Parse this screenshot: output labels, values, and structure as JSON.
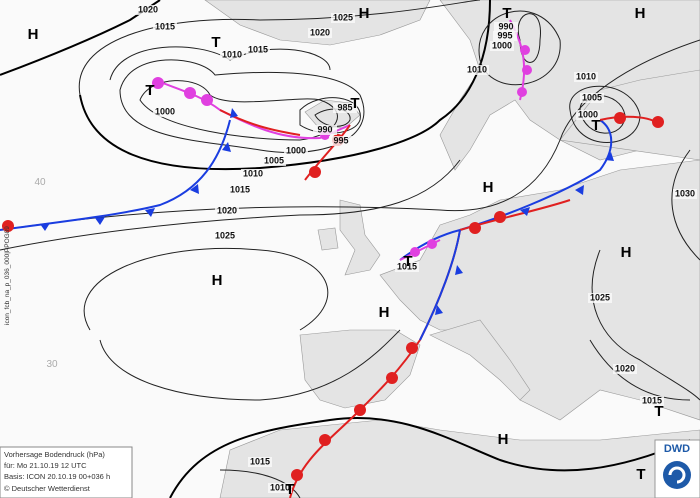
{
  "pressure_labels": [
    1020,
    1015,
    1010,
    1015,
    1020,
    1025,
    990,
    995,
    1000,
    1010,
    1010,
    1005,
    1000,
    1000,
    990,
    995,
    985,
    1000,
    1005,
    1010,
    1015,
    1020,
    1025,
    1015,
    1025,
    1020,
    1030,
    1015,
    1015,
    1010
  ],
  "pressure_centers": [
    "H",
    "H",
    "H",
    "H",
    "H",
    "H",
    "H",
    "H",
    "T",
    "T",
    "T",
    "T",
    "T",
    "T",
    "T",
    "T",
    "T"
  ],
  "latitude_labels": [
    "40",
    "30"
  ],
  "side_label": "icon_fcb_na_p_036_000|PPOG89",
  "info_box": {
    "title": "Vorhersage Bodendruck (hPa)",
    "valid": "für:  Mo 21.10.19  12 UTC",
    "base": "Basis: ICON  20.10.19 00+036 h",
    "copyright": "© Deutscher Wetterdienst"
  },
  "logo": "DWD"
}
